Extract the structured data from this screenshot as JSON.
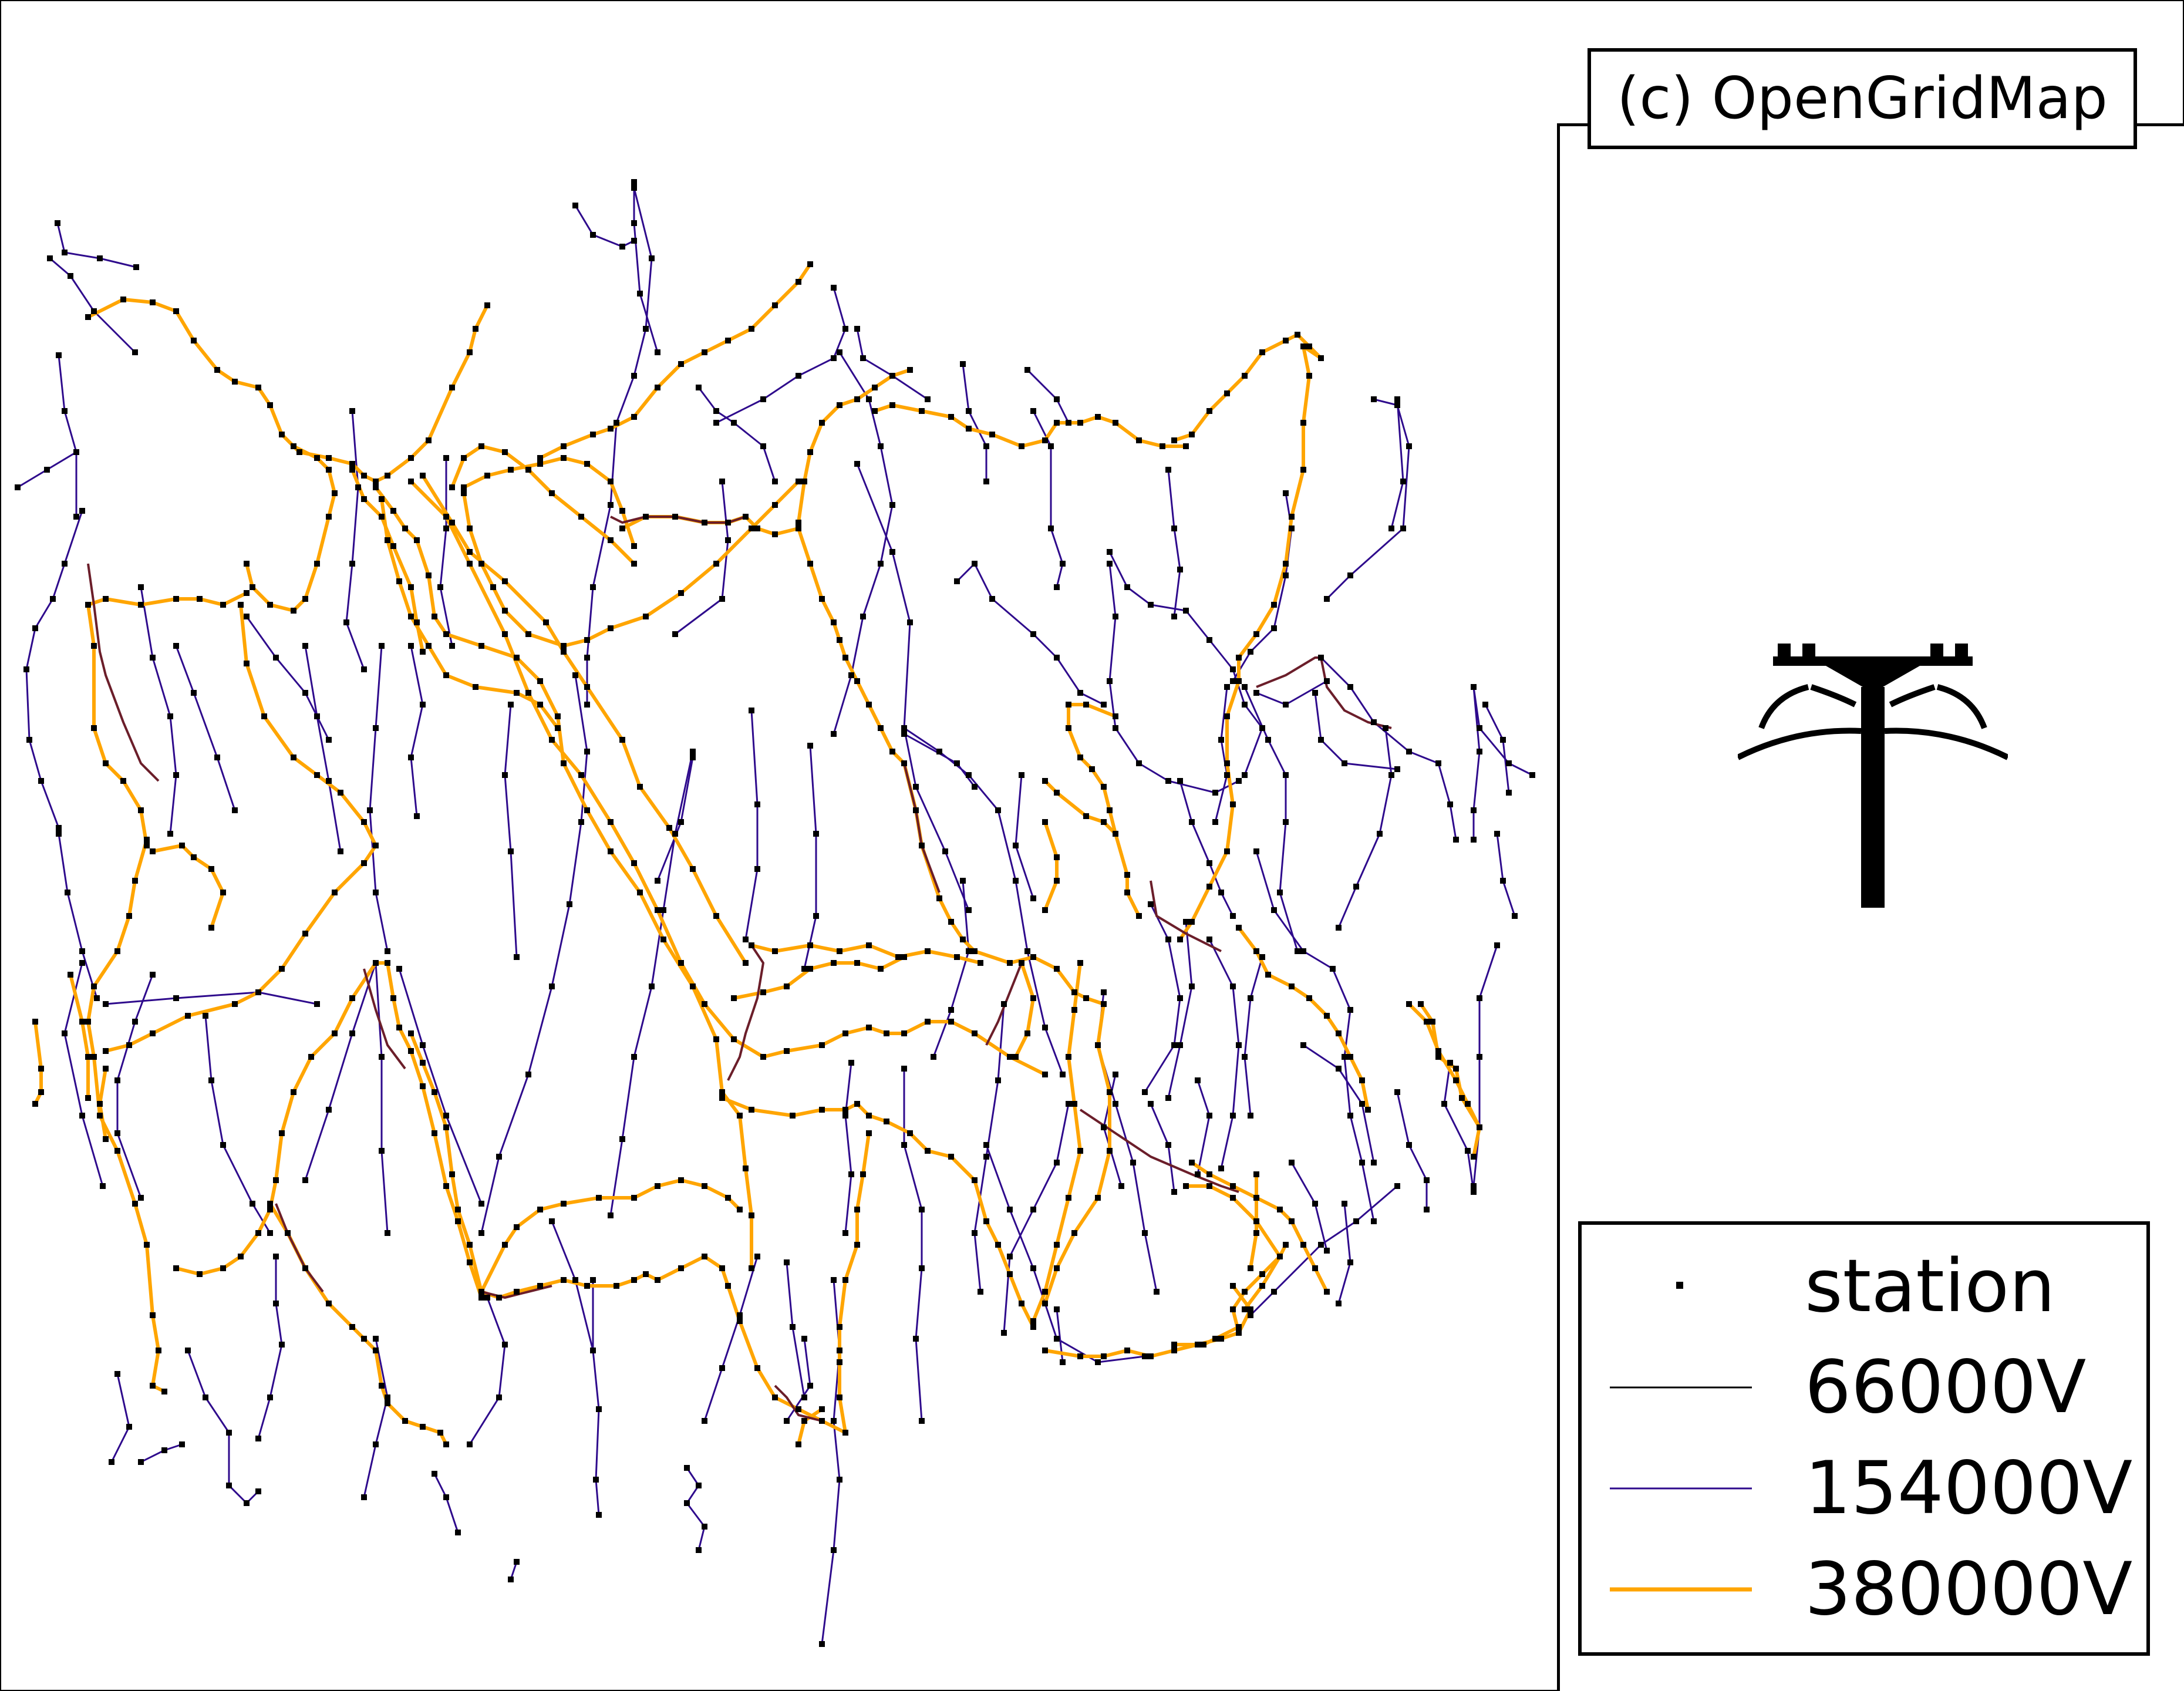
{
  "credit": "(c) OpenGridMap",
  "logo_icon": "power-pylon-icon",
  "legend": {
    "items": [
      {
        "id": "station",
        "label": "station",
        "symbol": "square-marker",
        "color": "#000000"
      },
      {
        "id": "v66",
        "label": "66000V",
        "symbol": "line",
        "color": "#000000"
      },
      {
        "id": "v154",
        "label": "154000V",
        "symbol": "line",
        "color": "#2e0a8c"
      },
      {
        "id": "v380",
        "label": "380000V",
        "symbol": "line",
        "color": "#ffa500"
      }
    ]
  },
  "colors": {
    "line_380": "#ffa500",
    "line_154": "#2e0a8c",
    "line_66": "#000000",
    "overlap": "#6b1e2a",
    "station": "#000000",
    "background": "#ffffff"
  }
}
